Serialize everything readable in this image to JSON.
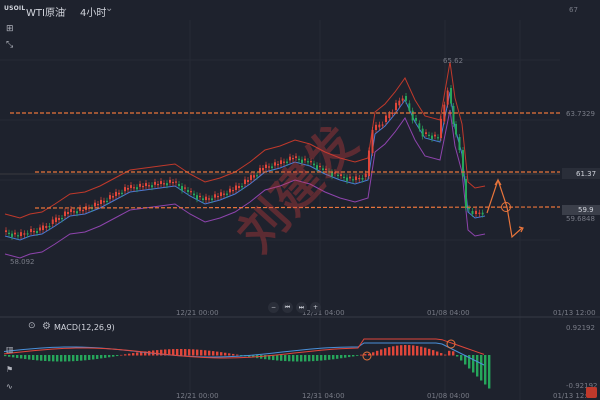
{
  "toolbar": {
    "symbol_badge": "USOIL",
    "symbol_name": "WTI原油",
    "chevron": "⌄",
    "interval": "4小时",
    "left_tools": [
      "⊞",
      "⤡"
    ]
  },
  "price_axis": {
    "top_label": "67",
    "levels": {
      "line_63": "63.7329",
      "line_61": "61.37",
      "current": "59.9",
      "under_current": "59.6848"
    },
    "annotations": {
      "high": "65.62",
      "low": "58.092"
    }
  },
  "time_axis": {
    "labels": [
      "12/21 00:00",
      "12/31 04:00",
      "01/08 04:00",
      "01/13 12:00"
    ]
  },
  "navigation": {
    "buttons": [
      "−",
      "⏮",
      "⏭",
      "+"
    ]
  },
  "macd": {
    "eye_icon": "⊙",
    "gear_icon": "⚙",
    "label": "MACD(12,26,9)",
    "top_value": "0.92192",
    "bottom_value": "-0.92192"
  },
  "watermark": "刘建发",
  "colors": {
    "background": "#1e222d",
    "up": "#e0463a",
    "down": "#26a65b",
    "level_line": "#e8743b",
    "bb_upper": "#c0392b",
    "bb_mid": "#4a7bd6",
    "bb_lower": "#8e44ad",
    "price_tag": "#e0463a"
  }
}
